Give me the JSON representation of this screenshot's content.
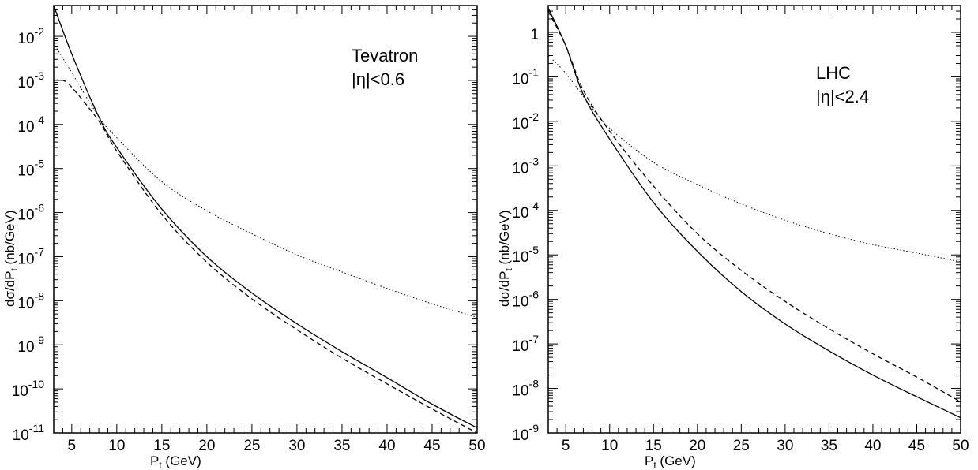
{
  "chart_data": [
    {
      "type": "line",
      "annotation": [
        "Tevatron",
        "|η|<0.6"
      ],
      "xlabel": "P_t (GeV)",
      "ylabel": "dσ/dP_t (nb/GeV)",
      "xlim": [
        3,
        50
      ],
      "ylim": [
        1e-11,
        0.05
      ],
      "yscale": "log",
      "xticks": [
        5,
        10,
        15,
        20,
        25,
        30,
        35,
        40,
        45,
        50
      ],
      "yticks": [
        {
          "mant": "10",
          "exp": "-2",
          "value": 0.01
        },
        {
          "mant": "10",
          "exp": "-3",
          "value": 0.001
        },
        {
          "mant": "10",
          "exp": "-4",
          "value": 0.0001
        },
        {
          "mant": "10",
          "exp": "-5",
          "value": 1e-05
        },
        {
          "mant": "10",
          "exp": "-6",
          "value": 1e-06
        },
        {
          "mant": "10",
          "exp": "-7",
          "value": 1e-07
        },
        {
          "mant": "10",
          "exp": "-8",
          "value": 1e-08
        },
        {
          "mant": "10",
          "exp": "-9",
          "value": 1e-09
        },
        {
          "mant": "10",
          "exp": "-10",
          "value": 1e-10
        },
        {
          "mant": "10",
          "exp": "-11",
          "value": 1e-11
        }
      ],
      "grid": false,
      "series": [
        {
          "style": "solid",
          "x": [
            3,
            5,
            8,
            10,
            15,
            20,
            25,
            30,
            35,
            40,
            45,
            50
          ],
          "y": [
            0.05,
            0.004,
            0.00015,
            3e-05,
            1.2e-06,
            1e-07,
            1.5e-08,
            3e-09,
            7e-10,
            1.8e-10,
            4.5e-11,
            1.3e-11
          ]
        },
        {
          "style": "dashed",
          "x": [
            3,
            4,
            5,
            8,
            10,
            15,
            20,
            25,
            30,
            35,
            40,
            45,
            50
          ],
          "y": [
            0.001,
            0.001,
            0.0007,
            0.00012,
            2.5e-05,
            9e-07,
            7.5e-08,
            1.1e-08,
            2.2e-09,
            5e-10,
            1.3e-10,
            3.5e-11,
            1e-11
          ]
        },
        {
          "style": "dotted",
          "x": [
            3,
            5,
            8,
            10,
            15,
            20,
            25,
            30,
            35,
            40,
            45,
            50
          ],
          "y": [
            0.007,
            0.0015,
            0.00015,
            5e-05,
            5e-06,
            1.1e-06,
            3.3e-07,
            1.1e-07,
            4.5e-08,
            1.9e-08,
            8.5e-09,
            4.2e-09
          ]
        }
      ]
    },
    {
      "type": "line",
      "annotation": [
        "LHC",
        "|η|<2.4"
      ],
      "xlabel": "P_t (GeV)",
      "ylabel": "dσ/dP_t (nb/GeV)",
      "xlim": [
        3,
        50
      ],
      "ylim": [
        1e-09,
        4
      ],
      "yscale": "log",
      "xticks": [
        5,
        10,
        15,
        20,
        25,
        30,
        35,
        40,
        45,
        50
      ],
      "yticks": [
        {
          "mant": "1",
          "exp": "",
          "value": 1
        },
        {
          "mant": "10",
          "exp": "-1",
          "value": 0.1
        },
        {
          "mant": "10",
          "exp": "-2",
          "value": 0.01
        },
        {
          "mant": "10",
          "exp": "-3",
          "value": 0.001
        },
        {
          "mant": "10",
          "exp": "-4",
          "value": 0.0001
        },
        {
          "mant": "10",
          "exp": "-5",
          "value": 1e-05
        },
        {
          "mant": "10",
          "exp": "-6",
          "value": 1e-06
        },
        {
          "mant": "10",
          "exp": "-7",
          "value": 1e-07
        },
        {
          "mant": "10",
          "exp": "-8",
          "value": 1e-08
        },
        {
          "mant": "10",
          "exp": "-9",
          "value": 1e-09
        }
      ],
      "grid": false,
      "series": [
        {
          "style": "solid",
          "x": [
            3,
            5,
            7,
            10,
            15,
            20,
            25,
            30,
            35,
            40,
            45,
            50
          ],
          "y": [
            3.5,
            0.5,
            0.04,
            0.004,
            0.00015,
            1.2e-05,
            1.5e-06,
            2.8e-07,
            7e-08,
            2e-08,
            6.5e-09,
            2.2e-09
          ]
        },
        {
          "style": "dashed",
          "x": [
            3,
            5,
            7,
            10,
            15,
            20,
            25,
            30,
            35,
            40,
            45,
            50
          ],
          "y": [
            3.0,
            0.5,
            0.05,
            0.006,
            0.00035,
            3e-05,
            4.5e-06,
            9e-07,
            2.2e-07,
            6e-08,
            1.8e-08,
            5e-09
          ]
        },
        {
          "style": "dotted",
          "x": [
            3,
            5,
            8,
            10,
            15,
            20,
            25,
            30,
            35,
            40,
            45,
            50
          ],
          "y": [
            0.3,
            0.12,
            0.02,
            0.007,
            0.0012,
            0.00038,
            0.00014,
            6e-05,
            3e-05,
            1.7e-05,
            1.1e-05,
            7e-06
          ]
        }
      ]
    }
  ]
}
